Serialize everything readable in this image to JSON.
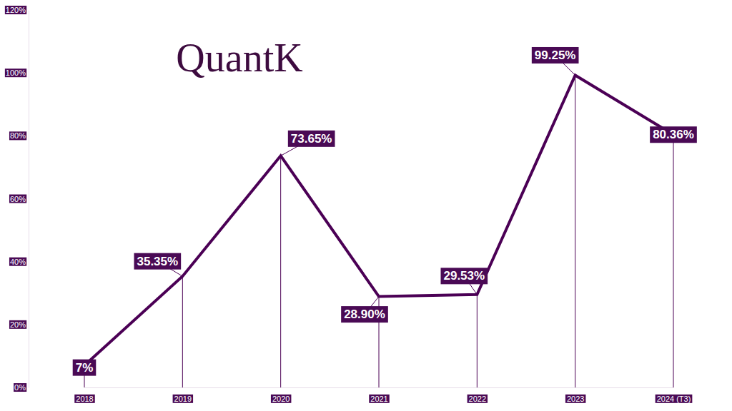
{
  "chart_data": {
    "type": "line",
    "title": "QuantK",
    "categories": [
      "2018",
      "2019",
      "2020",
      "2021",
      "2022",
      "2023",
      "2024 (T3)"
    ],
    "values": [
      7,
      35.35,
      73.65,
      28.9,
      29.53,
      99.25,
      80.36
    ],
    "value_labels": [
      "7%",
      "35.35%",
      "73.65%",
      "28.90%",
      "29.53%",
      "99.25%",
      "80.36%"
    ],
    "color": "#4b0055",
    "ylim": [
      0,
      120
    ],
    "yticks": [
      {
        "value": 0,
        "label": "0%"
      },
      {
        "value": 20,
        "label": "20%"
      },
      {
        "value": 40,
        "label": "40%"
      },
      {
        "value": 60,
        "label": "60%"
      },
      {
        "value": 80,
        "label": "80%"
      },
      {
        "value": 100,
        "label": "100%"
      },
      {
        "value": 120,
        "label": "120%"
      }
    ],
    "grid": false,
    "data_labels": true
  }
}
